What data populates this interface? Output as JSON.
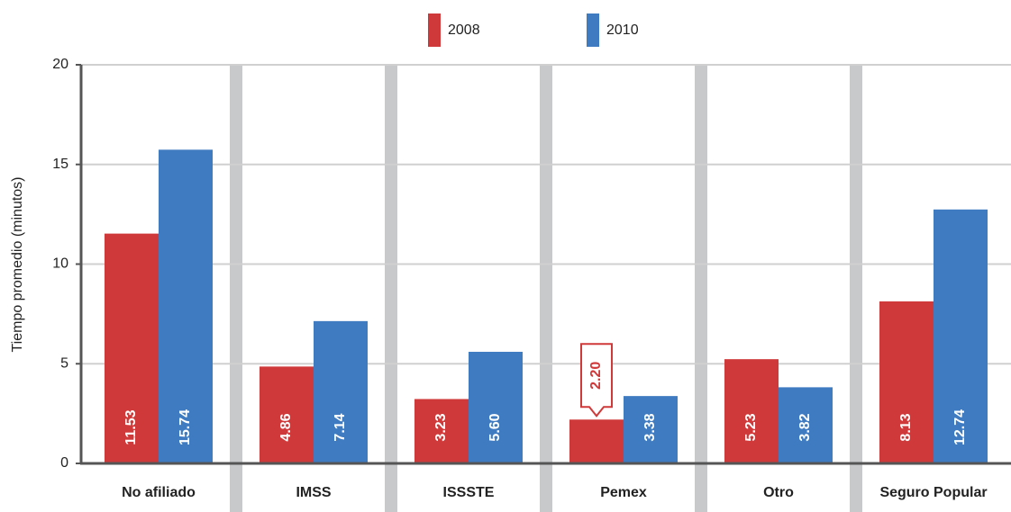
{
  "chart_data": {
    "type": "bar",
    "y_label": "Tiempo promedio (minutos)",
    "categories": [
      "No afiliado",
      "IMSS",
      "ISSSTE",
      "Pemex",
      "Otro",
      "Seguro Popular"
    ],
    "series": [
      {
        "name": "2008",
        "color": "#d0393a",
        "values": [
          11.53,
          4.86,
          3.23,
          2.2,
          5.23,
          8.13
        ],
        "value_labels": [
          "11.53",
          "4.86",
          "3.23",
          "2.20",
          "5.23",
          "8.13"
        ]
      },
      {
        "name": "2010",
        "color": "#3f7bc1",
        "values": [
          15.74,
          7.14,
          5.6,
          3.38,
          3.82,
          12.74
        ],
        "value_labels": [
          "15.74",
          "7.14",
          "5.60",
          "3.38",
          "3.82",
          "12.74"
        ]
      }
    ],
    "ylim": [
      0,
      20
    ],
    "yticks": [
      0,
      5,
      10,
      15,
      20
    ],
    "grid": true,
    "legend": "top"
  }
}
